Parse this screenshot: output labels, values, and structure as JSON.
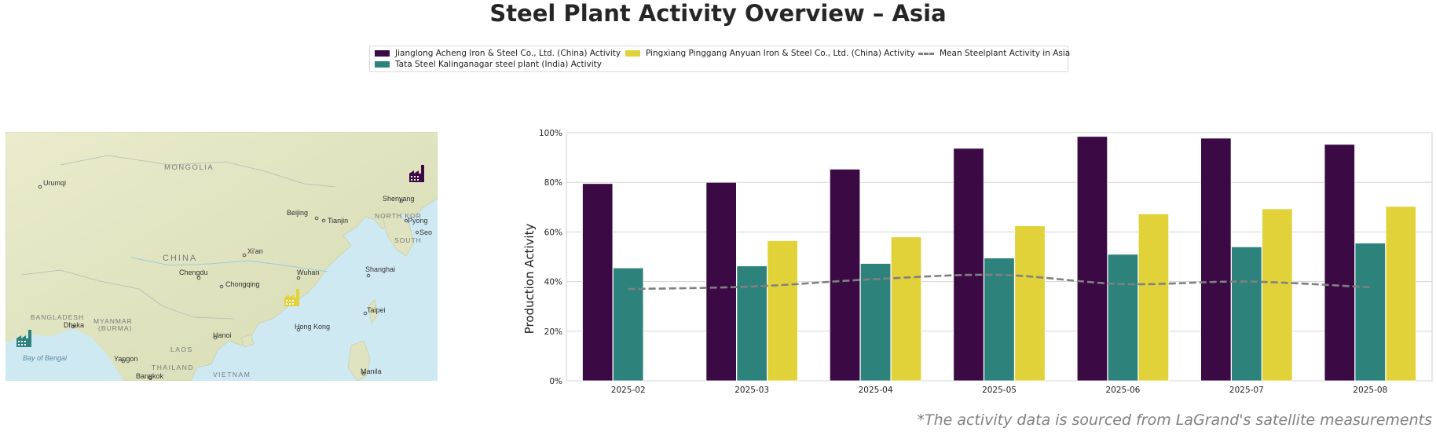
{
  "title": "Steel Plant Activity Overview – Asia",
  "footnote": "*The activity data is sourced from LaGrand's satellite measurements",
  "legend": {
    "items": [
      {
        "label": "Jianglong Acheng Iron & Steel Co., Ltd. (China) Activity",
        "color": "#3b0a45"
      },
      {
        "label": "Tata Steel Kalinganagar steel plant (India) Activity",
        "color": "#2e827c"
      },
      {
        "label": "Pingxiang Pinggang Anyuan Iron & Steel Co., Ltd. (China) Activity",
        "color": "#e2d23a"
      },
      {
        "label": "Mean Steelplant Activity in Asia",
        "color": "#808080"
      }
    ]
  },
  "map": {
    "labels": {
      "mongolia": "MONGOLIA",
      "urumqi": "Urumqi",
      "shenyang": "Shenyang",
      "beijing": "Beijing",
      "tianjin": "Tianjin",
      "north_korea": "NORTH KOR",
      "pyongyang": "Pyong",
      "seoul": "Seo",
      "south_korea": "SOUTH",
      "xian": "Xi'an",
      "china": "CHINA",
      "chengdu": "Chengdu",
      "chongqing": "Chongqing",
      "wuhan": "Wuhan",
      "shanghai": "Shanghai",
      "bangladesh": "BANGLADESH",
      "dhaka": "Dhaka",
      "myanmar": "MYANMAR",
      "burma": "(BURMA)",
      "hanoi": "Hanoi",
      "hong_kong": "Hong Kong",
      "taipei": "Taipei",
      "laos": "LAOS",
      "yangon": "Yangon",
      "thailand": "THAILAND",
      "bay_of_bengal": "Bay of Bengal",
      "bangkok": "Bangkok",
      "vietnam": "VIETNAM",
      "manila": "Manila"
    },
    "markers": [
      {
        "name": "Jianglong Acheng",
        "color": "#3b0a45"
      },
      {
        "name": "Pingxiang Pinggang Anyuan",
        "color": "#e2d23a"
      },
      {
        "name": "Tata Steel Kalinganagar",
        "color": "#2e827c"
      }
    ]
  },
  "chart_data": {
    "type": "bar",
    "title": "",
    "xlabel": "",
    "ylabel": "Production Activity",
    "ylim": [
      0,
      100
    ],
    "yticks": [
      "0%",
      "20%",
      "40%",
      "60%",
      "80%",
      "100%"
    ],
    "grid": true,
    "categories": [
      "2025-02",
      "2025-03",
      "2025-04",
      "2025-05",
      "2025-06",
      "2025-07",
      "2025-08"
    ],
    "series": [
      {
        "name": "Jianglong Acheng Iron & Steel Co., Ltd. (China) Activity",
        "color": "#3b0a45",
        "values": [
          79.5,
          80,
          85.3,
          93.7,
          98.5,
          97.8,
          95.3
        ]
      },
      {
        "name": "Tata Steel Kalinganagar steel plant (India) Activity",
        "color": "#2e827c",
        "values": [
          45.5,
          46.3,
          47.3,
          49.5,
          51,
          54,
          55.5
        ]
      },
      {
        "name": "Pingxiang Pinggang Anyuan Iron & Steel Co., Ltd. (China) Activity",
        "color": "#e2d23a",
        "values": [
          null,
          56.5,
          58,
          62.5,
          67.3,
          69.3,
          70.3
        ]
      }
    ],
    "mean_line": {
      "name": "Mean Steelplant Activity in Asia",
      "color": "#808080",
      "values": [
        37,
        38,
        41,
        42.7,
        39,
        40,
        37.7
      ]
    }
  }
}
